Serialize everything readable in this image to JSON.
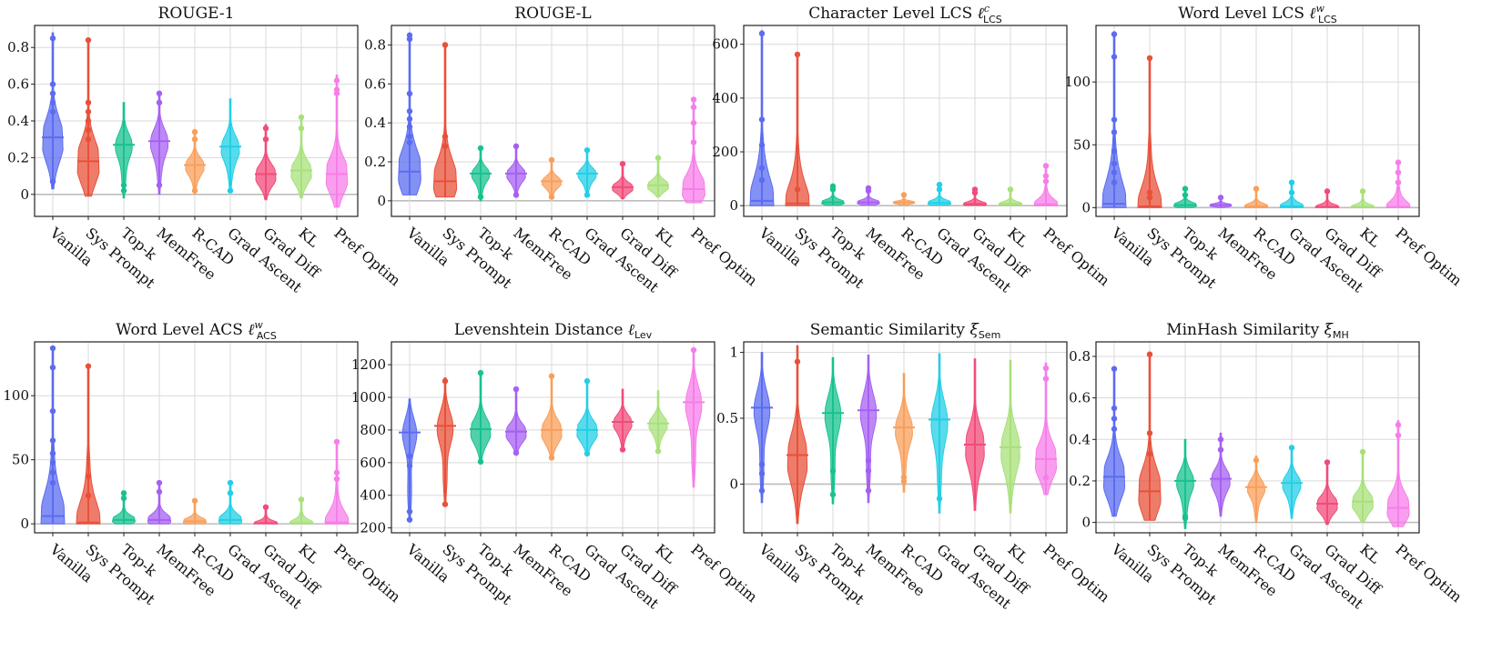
{
  "chart_data": [
    {
      "type": "violin",
      "title": "ROUGE-1",
      "ylim": [
        -0.12,
        0.92
      ],
      "yticks": [
        0,
        0.2,
        0.4,
        0.6,
        0.8
      ],
      "ytick_labels": [
        "0",
        "0.2",
        "0.4",
        "0.6",
        "0.8"
      ],
      "categories": [
        "Vanilla",
        "Sys Prompt",
        "Top-k",
        "MemFree",
        "R-CAD",
        "Grad Ascent",
        "Grad Diff",
        "KL",
        "Pref Optim"
      ],
      "series": [
        {
          "name": "Vanilla",
          "min": 0.03,
          "max": 0.88,
          "median": 0.31,
          "outliers": [
            0.85,
            0.6,
            0.55,
            0.5,
            0.45,
            0.07
          ]
        },
        {
          "name": "Sys Prompt",
          "min": -0.01,
          "max": 0.85,
          "median": 0.18,
          "outliers": [
            0.84,
            0.5,
            0.45,
            0.4,
            0.35,
            0.3
          ]
        },
        {
          "name": "Top-k",
          "min": -0.02,
          "max": 0.5,
          "median": 0.27,
          "outliers": [
            0.05,
            0.02
          ]
        },
        {
          "name": "MemFree",
          "min": 0.0,
          "max": 0.56,
          "median": 0.29,
          "outliers": [
            0.55,
            0.5,
            0.05
          ]
        },
        {
          "name": "R-CAD",
          "min": 0.0,
          "max": 0.35,
          "median": 0.16,
          "outliers": [
            0.34,
            0.3,
            0.02
          ]
        },
        {
          "name": "Grad Ascent",
          "min": 0.01,
          "max": 0.52,
          "median": 0.26,
          "outliers": [
            0.02
          ]
        },
        {
          "name": "Grad Diff",
          "min": -0.03,
          "max": 0.38,
          "median": 0.11,
          "outliers": [
            0.36,
            0.3
          ]
        },
        {
          "name": "KL",
          "min": -0.02,
          "max": 0.43,
          "median": 0.13,
          "outliers": [
            0.42,
            0.36
          ]
        },
        {
          "name": "Pref Optim",
          "min": -0.07,
          "max": 0.65,
          "median": 0.11,
          "outliers": [
            0.62,
            0.57,
            0.55
          ]
        }
      ]
    },
    {
      "type": "violin",
      "title": "ROUGE-L",
      "ylim": [
        -0.08,
        0.9
      ],
      "yticks": [
        0,
        0.2,
        0.4,
        0.6,
        0.8
      ],
      "ytick_labels": [
        "0",
        "0.2",
        "0.4",
        "0.6",
        "0.8"
      ],
      "categories": [
        "Vanilla",
        "Sys Prompt",
        "Top-k",
        "MemFree",
        "R-CAD",
        "Grad Ascent",
        "Grad Diff",
        "KL",
        "Pref Optim"
      ],
      "series": [
        {
          "name": "Vanilla",
          "min": 0.03,
          "max": 0.86,
          "median": 0.15,
          "outliers": [
            0.85,
            0.83,
            0.55,
            0.46,
            0.42,
            0.38,
            0.33,
            0.3
          ]
        },
        {
          "name": "Sys Prompt",
          "min": 0.02,
          "max": 0.8,
          "median": 0.1,
          "outliers": [
            0.8,
            0.33,
            0.28
          ]
        },
        {
          "name": "Top-k",
          "min": 0.0,
          "max": 0.28,
          "median": 0.14,
          "outliers": [
            0.27,
            0.02
          ]
        },
        {
          "name": "MemFree",
          "min": 0.02,
          "max": 0.29,
          "median": 0.14,
          "outliers": [
            0.28,
            0.03
          ]
        },
        {
          "name": "R-CAD",
          "min": 0.01,
          "max": 0.22,
          "median": 0.1,
          "outliers": [
            0.21,
            0.02
          ]
        },
        {
          "name": "Grad Ascent",
          "min": 0.02,
          "max": 0.27,
          "median": 0.14,
          "outliers": [
            0.26,
            0.03
          ]
        },
        {
          "name": "Grad Diff",
          "min": 0.01,
          "max": 0.2,
          "median": 0.07,
          "outliers": [
            0.19
          ]
        },
        {
          "name": "KL",
          "min": 0.02,
          "max": 0.23,
          "median": 0.08,
          "outliers": [
            0.22
          ]
        },
        {
          "name": "Pref Optim",
          "min": -0.01,
          "max": 0.52,
          "median": 0.06,
          "outliers": [
            0.52,
            0.48,
            0.4,
            0.3
          ]
        }
      ]
    },
    {
      "type": "violin",
      "title": "Character Level LCS ℓ<sup>c</sup><sub>LCS</sub>",
      "title_main": "Character Level LCS",
      "title_sym": "ℓ",
      "title_sup": "c",
      "title_sub": "LCS",
      "ylim": [
        -40,
        670
      ],
      "yticks": [
        0,
        200,
        400,
        600
      ],
      "ytick_labels": [
        "0",
        "200",
        "400",
        "600"
      ],
      "categories": [
        "Vanilla",
        "Sys Prompt",
        "Top-k",
        "MemFree",
        "R-CAD",
        "Grad Ascent",
        "Grad Diff",
        "KL",
        "Pref Optim"
      ],
      "series": [
        {
          "name": "Vanilla",
          "min": 0,
          "max": 650,
          "median": 18,
          "outliers": [
            640,
            320,
            225,
            140,
            95
          ]
        },
        {
          "name": "Sys Prompt",
          "min": 0,
          "max": 565,
          "median": 8,
          "outliers": [
            562,
            60
          ]
        },
        {
          "name": "Top-k",
          "min": 2,
          "max": 75,
          "median": 12,
          "outliers": [
            72,
            60
          ]
        },
        {
          "name": "MemFree",
          "min": 2,
          "max": 68,
          "median": 12,
          "outliers": [
            65,
            55
          ]
        },
        {
          "name": "R-CAD",
          "min": 2,
          "max": 42,
          "median": 12,
          "outliers": [
            40
          ]
        },
        {
          "name": "Grad Ascent",
          "min": 2,
          "max": 80,
          "median": 10,
          "outliers": [
            78,
            60
          ]
        },
        {
          "name": "Grad Diff",
          "min": 1,
          "max": 62,
          "median": 6,
          "outliers": [
            60,
            48
          ]
        },
        {
          "name": "KL",
          "min": 1,
          "max": 62,
          "median": 6,
          "outliers": [
            60
          ]
        },
        {
          "name": "Pref Optim",
          "min": 0,
          "max": 150,
          "median": 5,
          "outliers": [
            148,
            110,
            90
          ]
        }
      ]
    },
    {
      "type": "violin",
      "title_main": "Word Level LCS",
      "title_sym": "ℓ",
      "title_sup": "w",
      "title_sub": "LCS",
      "ylim": [
        -7,
        145
      ],
      "yticks": [
        0,
        50,
        100
      ],
      "ytick_labels": [
        "0",
        "50",
        "100"
      ],
      "categories": [
        "Vanilla",
        "Sys Prompt",
        "Top-k",
        "MemFree",
        "R-CAD",
        "Grad Ascent",
        "Grad Diff",
        "KL",
        "Pref Optim"
      ],
      "series": [
        {
          "name": "Vanilla",
          "min": 0,
          "max": 140,
          "median": 3,
          "outliers": [
            138,
            120,
            70,
            60,
            45,
            35,
            28,
            20
          ]
        },
        {
          "name": "Sys Prompt",
          "min": 0,
          "max": 120,
          "median": 1,
          "outliers": [
            119,
            12,
            8
          ]
        },
        {
          "name": "Top-k",
          "min": 0,
          "max": 16,
          "median": 2,
          "outliers": [
            15,
            10
          ]
        },
        {
          "name": "MemFree",
          "min": 0,
          "max": 9,
          "median": 2,
          "outliers": [
            8
          ]
        },
        {
          "name": "R-CAD",
          "min": 0,
          "max": 16,
          "median": 1,
          "outliers": [
            15
          ]
        },
        {
          "name": "Grad Ascent",
          "min": 0,
          "max": 21,
          "median": 1,
          "outliers": [
            20,
            12
          ]
        },
        {
          "name": "Grad Diff",
          "min": 0,
          "max": 14,
          "median": 0.5,
          "outliers": [
            13
          ]
        },
        {
          "name": "KL",
          "min": 0,
          "max": 14,
          "median": 0.5,
          "outliers": [
            13
          ]
        },
        {
          "name": "Pref Optim",
          "min": 0,
          "max": 37,
          "median": 0.5,
          "outliers": [
            36,
            28,
            20
          ]
        }
      ]
    },
    {
      "type": "violin",
      "title_main": "Word Level ACS",
      "title_sym": "ℓ",
      "title_sup": "w",
      "title_sub": "ACS",
      "ylim": [
        -7,
        142
      ],
      "yticks": [
        0,
        50,
        100
      ],
      "ytick_labels": [
        "0",
        "50",
        "100"
      ],
      "categories": [
        "Vanilla",
        "Sys Prompt",
        "Top-k",
        "MemFree",
        "R-CAD",
        "Grad Ascent",
        "Grad Diff",
        "KL",
        "Pref Optim"
      ],
      "series": [
        {
          "name": "Vanilla",
          "min": 0,
          "max": 138,
          "median": 6,
          "outliers": [
            137,
            122,
            88,
            65,
            55,
            48,
            40,
            32
          ]
        },
        {
          "name": "Sys Prompt",
          "min": 0,
          "max": 124,
          "median": 1,
          "outliers": [
            123,
            37,
            22
          ]
        },
        {
          "name": "Top-k",
          "min": 0,
          "max": 25,
          "median": 3,
          "outliers": [
            24,
            20
          ]
        },
        {
          "name": "MemFree",
          "min": 0,
          "max": 33,
          "median": 3,
          "outliers": [
            32,
            25
          ]
        },
        {
          "name": "R-CAD",
          "min": 0,
          "max": 19,
          "median": 2,
          "outliers": [
            18
          ]
        },
        {
          "name": "Grad Ascent",
          "min": 0,
          "max": 33,
          "median": 3,
          "outliers": [
            32,
            24
          ]
        },
        {
          "name": "Grad Diff",
          "min": 0,
          "max": 14,
          "median": 0.5,
          "outliers": [
            13
          ]
        },
        {
          "name": "KL",
          "min": 0,
          "max": 20,
          "median": 0.5,
          "outliers": [
            19
          ]
        },
        {
          "name": "Pref Optim",
          "min": 0,
          "max": 65,
          "median": 1,
          "outliers": [
            64,
            40,
            35
          ]
        }
      ]
    },
    {
      "type": "violin",
      "title_main": "Levenshtein Distance",
      "title_sym": "ℓ",
      "title_sup": "",
      "title_sub": "Lev",
      "ylim": [
        170,
        1340
      ],
      "yticks": [
        200,
        400,
        600,
        800,
        1000,
        1200
      ],
      "ytick_labels": [
        "200",
        "400",
        "600",
        "800",
        "1000",
        "1200"
      ],
      "categories": [
        "Vanilla",
        "Sys Prompt",
        "Top-k",
        "MemFree",
        "R-CAD",
        "Grad Ascent",
        "Grad Diff",
        "KL",
        "Pref Optim"
      ],
      "series": [
        {
          "name": "Vanilla",
          "min": 240,
          "max": 990,
          "median": 785,
          "outliers": [
            250,
            300,
            580,
            640
          ]
        },
        {
          "name": "Sys Prompt",
          "min": 340,
          "max": 1120,
          "median": 825,
          "outliers": [
            345,
            1100
          ]
        },
        {
          "name": "Top-k",
          "min": 600,
          "max": 1160,
          "median": 805,
          "outliers": [
            605,
            1150
          ]
        },
        {
          "name": "MemFree",
          "min": 650,
          "max": 1060,
          "median": 790,
          "outliers": [
            660,
            1050
          ]
        },
        {
          "name": "R-CAD",
          "min": 620,
          "max": 1140,
          "median": 800,
          "outliers": [
            630,
            1130
          ]
        },
        {
          "name": "Grad Ascent",
          "min": 650,
          "max": 1110,
          "median": 800,
          "outliers": [
            655,
            1100
          ]
        },
        {
          "name": "Grad Diff",
          "min": 670,
          "max": 1050,
          "median": 850,
          "outliers": [
            680
          ]
        },
        {
          "name": "KL",
          "min": 660,
          "max": 1040,
          "median": 840,
          "outliers": [
            670
          ]
        },
        {
          "name": "Pref Optim",
          "min": 450,
          "max": 1300,
          "median": 970,
          "outliers": [
            1290
          ]
        }
      ]
    },
    {
      "type": "violin",
      "title_main": "Semantic Similarity",
      "title_sym": "ξ",
      "title_sup": "",
      "title_sub": "Sem",
      "ylim": [
        -0.37,
        1.08
      ],
      "yticks": [
        0,
        0.5,
        1
      ],
      "ytick_labels": [
        "0",
        "0.5",
        "1"
      ],
      "categories": [
        "Vanilla",
        "Sys Prompt",
        "Top-k",
        "MemFree",
        "R-CAD",
        "Grad Ascent",
        "Grad Diff",
        "KL",
        "Pref Optim"
      ],
      "series": [
        {
          "name": "Vanilla",
          "min": -0.14,
          "max": 1.0,
          "median": 0.58,
          "outliers": [
            -0.05,
            0.08,
            0.15
          ]
        },
        {
          "name": "Sys Prompt",
          "min": -0.3,
          "max": 1.05,
          "median": 0.22,
          "outliers": [
            0.93
          ]
        },
        {
          "name": "Top-k",
          "min": -0.15,
          "max": 0.96,
          "median": 0.54,
          "outliers": [
            -0.08,
            0.1
          ]
        },
        {
          "name": "MemFree",
          "min": -0.14,
          "max": 0.98,
          "median": 0.56,
          "outliers": [
            -0.05,
            0.1,
            0.18
          ]
        },
        {
          "name": "R-CAD",
          "min": -0.06,
          "max": 0.84,
          "median": 0.43,
          "outliers": [
            0.02,
            0.05
          ]
        },
        {
          "name": "Grad Ascent",
          "min": -0.22,
          "max": 0.99,
          "median": 0.49,
          "outliers": [
            -0.11
          ]
        },
        {
          "name": "Grad Diff",
          "min": -0.2,
          "max": 0.95,
          "median": 0.3,
          "outliers": []
        },
        {
          "name": "KL",
          "min": -0.22,
          "max": 0.94,
          "median": 0.28,
          "outliers": []
        },
        {
          "name": "Pref Optim",
          "min": -0.08,
          "max": 0.92,
          "median": 0.19,
          "outliers": [
            0.88,
            0.8,
            0.05
          ]
        }
      ]
    },
    {
      "type": "violin",
      "title_main": "MinHash Similarity",
      "title_sym": "ξ",
      "title_sup": "",
      "title_sub": "MH",
      "ylim": [
        -0.05,
        0.87
      ],
      "yticks": [
        0,
        0.2,
        0.4,
        0.6,
        0.8
      ],
      "ytick_labels": [
        "0",
        "0.2",
        "0.4",
        "0.6",
        "0.8"
      ],
      "categories": [
        "Vanilla",
        "Sys Prompt",
        "Top-k",
        "MemFree",
        "R-CAD",
        "Grad Ascent",
        "Grad Diff",
        "KL",
        "Pref Optim"
      ],
      "series": [
        {
          "name": "Vanilla",
          "min": 0.03,
          "max": 0.75,
          "median": 0.22,
          "outliers": [
            0.74,
            0.55,
            0.5,
            0.45
          ]
        },
        {
          "name": "Sys Prompt",
          "min": 0.01,
          "max": 0.82,
          "median": 0.15,
          "outliers": [
            0.81,
            0.43,
            0.33
          ]
        },
        {
          "name": "Top-k",
          "min": -0.03,
          "max": 0.4,
          "median": 0.2,
          "outliers": [
            0.02,
            0.03
          ]
        },
        {
          "name": "MemFree",
          "min": 0.03,
          "max": 0.43,
          "median": 0.21,
          "outliers": [
            0.4,
            0.35
          ]
        },
        {
          "name": "R-CAD",
          "min": 0.0,
          "max": 0.32,
          "median": 0.17,
          "outliers": [
            0.3
          ]
        },
        {
          "name": "Grad Ascent",
          "min": 0.02,
          "max": 0.37,
          "median": 0.19,
          "outliers": [
            0.36
          ]
        },
        {
          "name": "Grad Diff",
          "min": -0.01,
          "max": 0.3,
          "median": 0.09,
          "outliers": [
            0.29
          ]
        },
        {
          "name": "KL",
          "min": 0.0,
          "max": 0.35,
          "median": 0.1,
          "outliers": [
            0.34
          ]
        },
        {
          "name": "Pref Optim",
          "min": -0.02,
          "max": 0.49,
          "median": 0.07,
          "outliers": [
            0.47,
            0.42
          ]
        }
      ]
    }
  ],
  "colors": [
    "#5b6cf0",
    "#e8503a",
    "#17c28f",
    "#a560f2",
    "#f89f5b",
    "#22cfe6",
    "#f24b7a",
    "#a8e07a",
    "#f77de8"
  ]
}
